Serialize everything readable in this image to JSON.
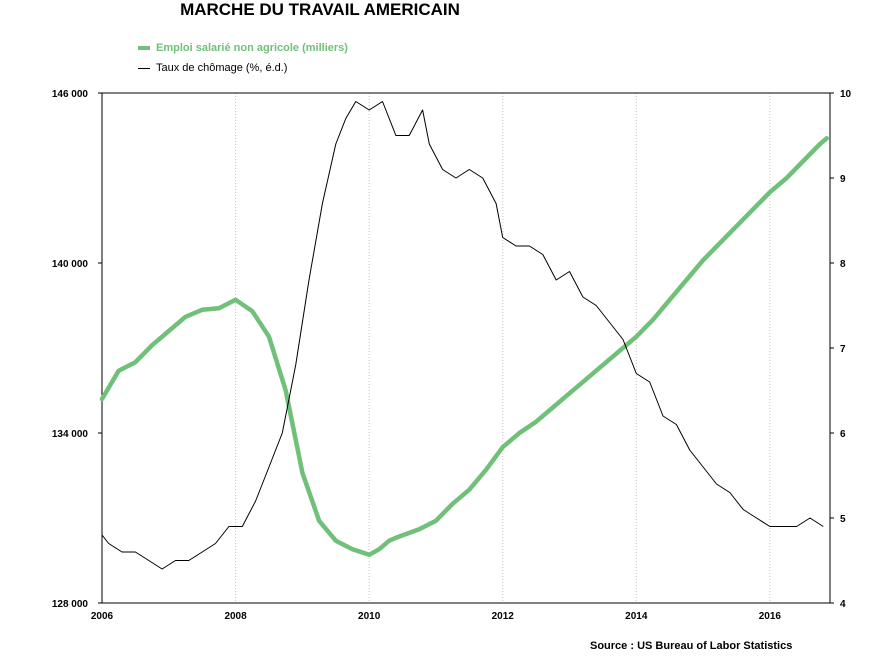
{
  "chart_data": {
    "type": "line",
    "title": "MARCHE DU TRAVAIL AMERICAIN",
    "source": "Source : US Bureau of Labor Statistics",
    "x_axis": {
      "range": [
        2006.0,
        2016.9
      ],
      "ticks": [
        2006,
        2008,
        2010,
        2012,
        2014,
        2016
      ],
      "tick_labels": [
        "2006",
        "2008",
        "2010",
        "2012",
        "2014",
        "2016"
      ]
    },
    "y_axis_left": {
      "range": [
        128000,
        146000
      ],
      "ticks": [
        128000,
        134000,
        140000,
        146000
      ],
      "tick_labels": [
        "128 000",
        "134 000",
        "140 000",
        "146 000"
      ]
    },
    "y_axis_right": {
      "range": [
        4,
        10
      ],
      "ticks": [
        4,
        5,
        6,
        7,
        8,
        9,
        10
      ],
      "tick_labels": [
        "4",
        "5",
        "6",
        "7",
        "8",
        "9",
        "10"
      ]
    },
    "grid": {
      "vertical": true,
      "style": "dotted"
    },
    "legend": "top-left",
    "colors": {
      "emploi": "#70c07a",
      "chomage": "#000000",
      "grid": "#c8c8c8"
    },
    "series": [
      {
        "name": "Emploi salarié non agricole (milliers)",
        "axis": "left",
        "x": [
          2006.0,
          2006.25,
          2006.5,
          2006.75,
          2007.0,
          2007.25,
          2007.5,
          2007.75,
          2008.0,
          2008.25,
          2008.5,
          2008.75,
          2009.0,
          2009.25,
          2009.5,
          2009.75,
          2010.0,
          2010.15,
          2010.3,
          2010.4,
          2010.75,
          2011.0,
          2011.25,
          2011.5,
          2011.75,
          2012.0,
          2012.25,
          2012.5,
          2012.75,
          2013.0,
          2013.25,
          2013.5,
          2013.75,
          2014.0,
          2014.25,
          2014.5,
          2014.75,
          2015.0,
          2015.25,
          2015.5,
          2015.75,
          2016.0,
          2016.25,
          2016.5,
          2016.75,
          2016.85
        ],
        "values": [
          135200,
          136200,
          136500,
          137100,
          137600,
          138100,
          138350,
          138400,
          138700,
          138300,
          137400,
          135500,
          132600,
          130900,
          130200,
          129900,
          129700,
          129900,
          130200,
          130300,
          130600,
          130900,
          131500,
          132000,
          132700,
          133500,
          134000,
          134400,
          134900,
          135400,
          135900,
          136400,
          136900,
          137400,
          138000,
          138700,
          139400,
          140100,
          140700,
          141300,
          141900,
          142500,
          143000,
          143600,
          144200,
          144400
        ]
      },
      {
        "name": "Taux de chômage (%, é.d.)",
        "axis": "right",
        "x": [
          2006.0,
          2006.1,
          2006.3,
          2006.5,
          2006.7,
          2006.9,
          2007.1,
          2007.3,
          2007.5,
          2007.7,
          2007.9,
          2008.1,
          2008.3,
          2008.5,
          2008.7,
          2008.9,
          2009.1,
          2009.3,
          2009.5,
          2009.65,
          2009.8,
          2010.0,
          2010.2,
          2010.4,
          2010.6,
          2010.8,
          2010.9,
          2011.1,
          2011.3,
          2011.5,
          2011.7,
          2011.9,
          2012.0,
          2012.2,
          2012.4,
          2012.6,
          2012.8,
          2013.0,
          2013.2,
          2013.4,
          2013.6,
          2013.8,
          2014.0,
          2014.2,
          2014.4,
          2014.6,
          2014.8,
          2015.0,
          2015.2,
          2015.4,
          2015.6,
          2015.8,
          2016.0,
          2016.2,
          2016.4,
          2016.6,
          2016.8
        ],
        "values": [
          4.8,
          4.7,
          4.6,
          4.6,
          4.5,
          4.4,
          4.5,
          4.5,
          4.6,
          4.7,
          4.9,
          4.9,
          5.2,
          5.6,
          6.0,
          6.8,
          7.8,
          8.7,
          9.4,
          9.7,
          9.9,
          9.8,
          9.9,
          9.5,
          9.5,
          9.8,
          9.4,
          9.1,
          9.0,
          9.1,
          9.0,
          8.7,
          8.3,
          8.2,
          8.2,
          8.1,
          7.8,
          7.9,
          7.6,
          7.5,
          7.3,
          7.1,
          6.7,
          6.6,
          6.2,
          6.1,
          5.8,
          5.6,
          5.4,
          5.3,
          5.1,
          5.0,
          4.9,
          4.9,
          4.9,
          5.0,
          4.9
        ]
      }
    ]
  }
}
